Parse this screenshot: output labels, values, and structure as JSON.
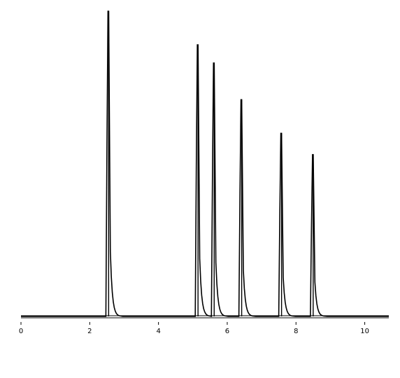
{
  "chart_data": {
    "type": "line",
    "title": "",
    "xlabel": "",
    "ylabel": "",
    "xlim": [
      0,
      10.7
    ],
    "ylim": [
      0,
      1.0
    ],
    "x_ticks": [
      0,
      2,
      4,
      6,
      8,
      10
    ],
    "x_tick_labels": [
      "0",
      "2",
      "4",
      "6",
      "8",
      "10"
    ],
    "grid": false,
    "line_color": "#000000",
    "peaks": [
      {
        "x": 2.55,
        "height": 1.0,
        "clipped": true
      },
      {
        "x": 5.15,
        "height": 0.89
      },
      {
        "x": 5.62,
        "height": 0.83
      },
      {
        "x": 6.42,
        "height": 0.71
      },
      {
        "x": 7.58,
        "height": 0.6
      },
      {
        "x": 8.5,
        "height": 0.53
      }
    ]
  }
}
